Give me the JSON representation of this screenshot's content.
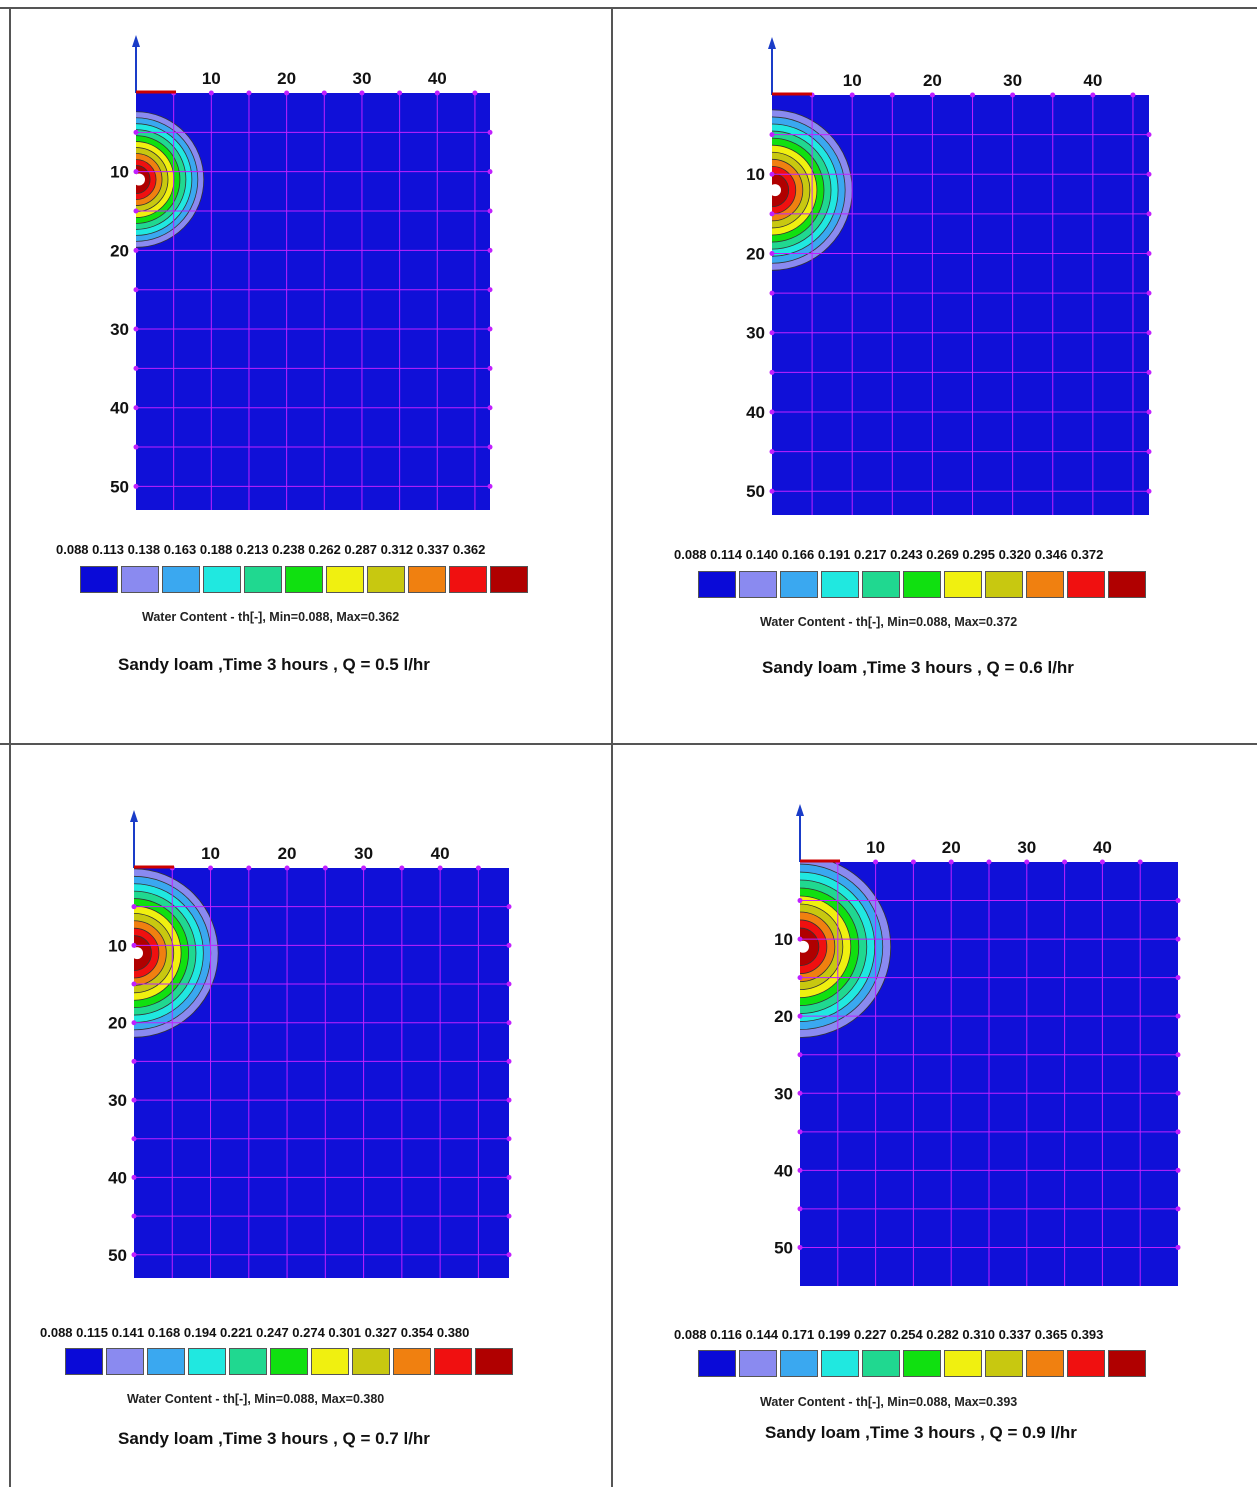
{
  "colors": {
    "background_fill": "#1010d8",
    "grid_line": "#c020ff",
    "axis": "#1a3cc8",
    "origin_marker": "#cc0000",
    "frame": "#555555"
  },
  "legend_colors": [
    "#0a0ad8",
    "#8a8af0",
    "#3aa8f0",
    "#20e8e0",
    "#20d890",
    "#10e010",
    "#f0f010",
    "#c8c810",
    "#f08010",
    "#f01010",
    "#b00000"
  ],
  "panels": [
    {
      "legend_values": "0.088 0.113 0.138 0.163 0.188 0.213 0.238 0.262 0.287 0.312 0.337 0.362",
      "legend_caption": "Water Content   - th[-],  Min=0.088, Max=0.362",
      "title": "Sandy loam ,Time 3 hours , Q =  0.5 l/hr"
    },
    {
      "legend_values": "0.088 0.114 0.140 0.166 0.191 0.217 0.243 0.269 0.295 0.320 0.346 0.372",
      "legend_caption": "Water Content   - th[-],  Min=0.088, Max=0.372",
      "title": "Sandy loam ,Time 3 hours , Q =  0.6 l/hr"
    },
    {
      "legend_values": "0.088 0.115 0.141 0.168 0.194 0.221 0.247 0.274 0.301 0.327 0.354 0.380",
      "legend_caption": "Water Content   - th[-],  Min=0.088, Max=0.380",
      "title": "Sandy loam ,Time 3 hours , Q =   0.7 l/hr"
    },
    {
      "legend_values": "0.088 0.116 0.144 0.171 0.199 0.227 0.254 0.282 0.310 0.337 0.365 0.393",
      "legend_caption": "Water Content   - th[-],  Min=0.088, Max=0.393",
      "title": "Sandy loam ,Time 3 hours , Q =   0.9 l/hr"
    }
  ],
  "chart_data": [
    {
      "type": "heatmap",
      "x_ticks": [
        "10",
        "20",
        "30",
        "40"
      ],
      "y_ticks": [
        "10",
        "20",
        "30",
        "40",
        "50"
      ],
      "x_range": [
        0,
        47
      ],
      "y_range": [
        0,
        53
      ],
      "grid": true,
      "wetted_radius": 9,
      "source_depth": 11,
      "min": 0.088,
      "max": 0.362
    },
    {
      "type": "heatmap",
      "x_ticks": [
        "10",
        "20",
        "30",
        "40"
      ],
      "y_ticks": [
        "10",
        "20",
        "30",
        "40",
        "50"
      ],
      "x_range": [
        0,
        47
      ],
      "y_range": [
        0,
        53
      ],
      "grid": true,
      "wetted_radius": 10,
      "source_depth": 12,
      "min": 0.088,
      "max": 0.372
    },
    {
      "type": "heatmap",
      "x_ticks": [
        "10",
        "20",
        "30",
        "40"
      ],
      "y_ticks": [
        "10",
        "20",
        "30",
        "40",
        "50"
      ],
      "x_range": [
        0,
        49
      ],
      "y_range": [
        0,
        53
      ],
      "grid": true,
      "wetted_radius": 11,
      "source_depth": 11,
      "min": 0.088,
      "max": 0.38
    },
    {
      "type": "heatmap",
      "x_ticks": [
        "10",
        "20",
        "30",
        "40"
      ],
      "y_ticks": [
        "10",
        "20",
        "30",
        "40",
        "50"
      ],
      "x_range": [
        0,
        50
      ],
      "y_range": [
        0,
        55
      ],
      "grid": true,
      "wetted_radius": 12,
      "source_depth": 11,
      "min": 0.088,
      "max": 0.393
    }
  ]
}
